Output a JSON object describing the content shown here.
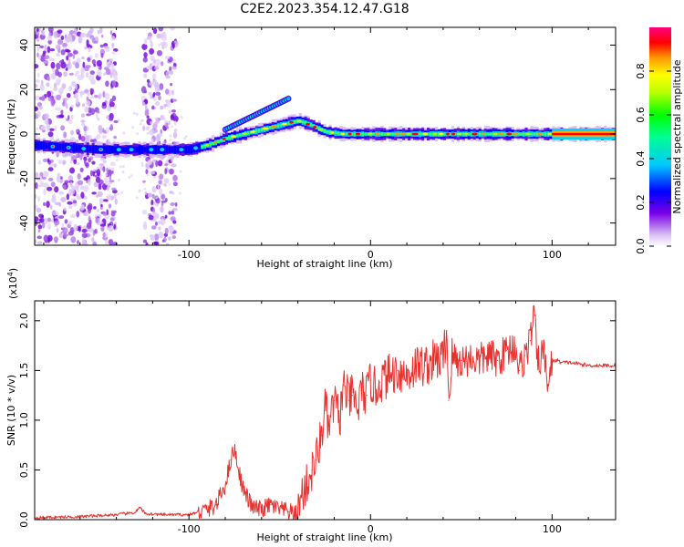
{
  "chart_data": [
    {
      "type": "heatmap",
      "title": "C2E2.2023.354.12.47.G18",
      "xlabel": "Height of straight line (km)",
      "ylabel": "Frequency (Hz)",
      "xlim": [
        -185,
        135
      ],
      "ylim": [
        -50,
        48
      ],
      "xticks": [
        -100,
        0,
        100
      ],
      "yticks": [
        -40,
        -20,
        0,
        20,
        40
      ],
      "colorbar": {
        "label": "Normalized spectral amplitude",
        "range": [
          0,
          1
        ],
        "ticks": [
          0.0,
          0.2,
          0.4,
          0.6,
          0.8
        ]
      },
      "ridge": [
        {
          "x": -185,
          "f": -5
        },
        {
          "x": -150,
          "f": -7
        },
        {
          "x": -120,
          "f": -7
        },
        {
          "x": -100,
          "f": -7
        },
        {
          "x": -90,
          "f": -5
        },
        {
          "x": -80,
          "f": -2
        },
        {
          "x": -70,
          "f": 0
        },
        {
          "x": -60,
          "f": 2
        },
        {
          "x": -50,
          "f": 4
        },
        {
          "x": -40,
          "f": 6
        },
        {
          "x": -33,
          "f": 4
        },
        {
          "x": -25,
          "f": 1
        },
        {
          "x": -15,
          "f": 0
        },
        {
          "x": 0,
          "f": 0
        },
        {
          "x": 100,
          "f": 0
        },
        {
          "x": 135,
          "f": 0
        }
      ],
      "upper_branch": [
        {
          "x": -80,
          "f": 2
        },
        {
          "x": -70,
          "f": 6
        },
        {
          "x": -60,
          "f": 10
        },
        {
          "x": -50,
          "f": 14
        },
        {
          "x": -45,
          "f": 16
        }
      ],
      "noise_bands": [
        [
          -185,
          -140
        ],
        [
          -125,
          -107
        ]
      ]
    },
    {
      "type": "line",
      "xlabel": "Height of straight line (km)",
      "ylabel": "SNR (10 * v/v)",
      "yscale_label": "(x10",
      "yscale_exp": "4",
      "yscale_close": ")",
      "xlim": [
        -185,
        135
      ],
      "ylim": [
        0,
        2.2
      ],
      "xticks": [
        -100,
        0,
        100
      ],
      "yticks": [
        0.0,
        0.5,
        1.0,
        1.5,
        2.0
      ],
      "color": "#e8322e",
      "series": [
        {
          "name": "SNR",
          "x": [
            -185,
            -160,
            -140,
            -130,
            -127,
            -124,
            -115,
            -100,
            -90,
            -85,
            -80,
            -77,
            -75,
            -72,
            -70,
            -65,
            -60,
            -55,
            -50,
            -45,
            -40,
            -38,
            -35,
            -32,
            -30,
            -27,
            -25,
            -23,
            -20,
            -17,
            -15,
            -12,
            -10,
            -7,
            -5,
            -2,
            0,
            3,
            5,
            10,
            15,
            20,
            25,
            30,
            35,
            40,
            42,
            43,
            45,
            48,
            50,
            55,
            60,
            65,
            70,
            75,
            80,
            82,
            85,
            88,
            90,
            92,
            95,
            98,
            100,
            103,
            105,
            110,
            120,
            135
          ],
          "values": [
            0.02,
            0.03,
            0.05,
            0.07,
            0.12,
            0.06,
            0.05,
            0.05,
            0.1,
            0.15,
            0.35,
            0.6,
            0.72,
            0.45,
            0.3,
            0.12,
            0.1,
            0.15,
            0.1,
            0.08,
            0.05,
            0.25,
            0.35,
            0.5,
            0.6,
            0.85,
            1.15,
            0.9,
            1.2,
            1.0,
            1.35,
            1.2,
            1.25,
            1.1,
            1.3,
            1.25,
            1.4,
            1.3,
            1.38,
            1.45,
            1.5,
            1.45,
            1.55,
            1.55,
            1.6,
            1.62,
            1.9,
            1.2,
            1.65,
            1.58,
            1.6,
            1.62,
            1.6,
            1.65,
            1.6,
            1.7,
            1.75,
            1.5,
            1.65,
            1.8,
            2.1,
            1.55,
            1.7,
            1.35,
            1.6,
            1.6,
            1.58,
            1.58,
            1.55,
            1.55
          ]
        }
      ]
    }
  ]
}
